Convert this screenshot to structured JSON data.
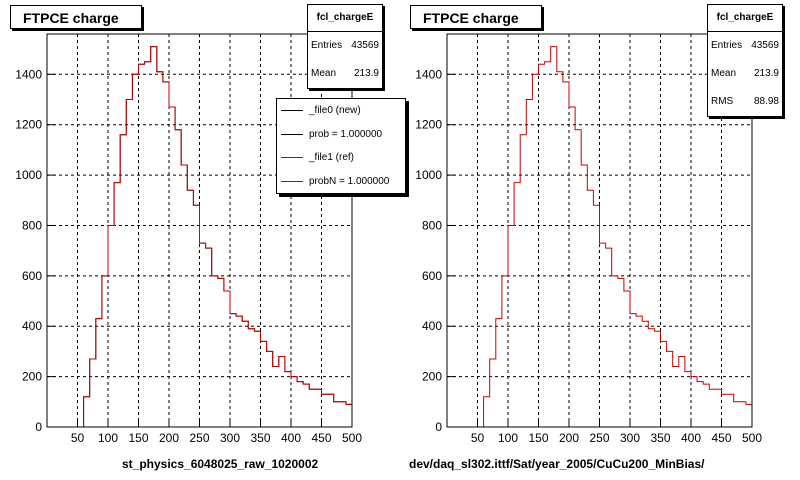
{
  "colors": {
    "new": "#000000",
    "ref": "#cc0000"
  },
  "panels": [
    {
      "title": "FTPCE charge",
      "xtitle": "st_physics_6048025_raw_1020002",
      "stats": {
        "name": "fcl_chargeE",
        "rows": [
          {
            "label": "Entries",
            "value": "43569"
          },
          {
            "label": "Mean",
            "value": "213.9"
          }
        ]
      },
      "legend": [
        {
          "label": "_file0 (new)",
          "color": "#000000"
        },
        {
          "label": "prob = 1.000000",
          "color": "#000000"
        },
        {
          "label": "_file1 (ref)",
          "color": "#cc0000"
        },
        {
          "label": "probN = 1.000000",
          "color": "#cc0000"
        }
      ]
    },
    {
      "title": "FTPCE charge",
      "xtitle": "dev/daq_sl302.ittf/Sat/year_2005/CuCu200_MinBias/",
      "stats": {
        "name": "fcl_chargeE",
        "rows": [
          {
            "label": "Entries",
            "value": "43569"
          },
          {
            "label": "Mean",
            "value": "213.9"
          },
          {
            "label": "RMS",
            "value": "88.98"
          }
        ]
      },
      "legend": []
    }
  ],
  "chart_data": [
    {
      "type": "histogram",
      "title": "FTPCE charge",
      "xlabel": "st_physics_6048025_raw_1020002",
      "ylabel": "",
      "xlim": [
        0,
        500
      ],
      "ylim": [
        0,
        1560
      ],
      "xticks": [
        50,
        100,
        150,
        200,
        250,
        300,
        350,
        400,
        450,
        500
      ],
      "yticks": [
        0,
        200,
        400,
        600,
        800,
        1000,
        1200,
        1400
      ],
      "bin_width": 10,
      "bin_low_edges": [
        0,
        10,
        20,
        30,
        40,
        50,
        60,
        70,
        80,
        90,
        100,
        110,
        120,
        130,
        140,
        150,
        160,
        170,
        180,
        190,
        200,
        210,
        220,
        230,
        240,
        250,
        260,
        270,
        280,
        290,
        300,
        310,
        320,
        330,
        340,
        350,
        360,
        370,
        380,
        390,
        400,
        410,
        420,
        430,
        440,
        450,
        460,
        470,
        480,
        490
      ],
      "series": [
        {
          "name": "_file0 (new)",
          "values": [
            0,
            0,
            0,
            0,
            0,
            0,
            120,
            270,
            430,
            600,
            800,
            970,
            1160,
            1300,
            1400,
            1440,
            1450,
            1510,
            1410,
            1370,
            1270,
            1180,
            1040,
            940,
            880,
            730,
            710,
            600,
            590,
            540,
            450,
            440,
            420,
            390,
            380,
            340,
            300,
            240,
            280,
            220,
            200,
            180,
            170,
            150,
            150,
            130,
            130,
            100,
            100,
            90
          ]
        },
        {
          "name": "_file1 (ref)",
          "values": [
            0,
            0,
            0,
            0,
            0,
            0,
            120,
            270,
            430,
            600,
            800,
            970,
            1160,
            1300,
            1400,
            1440,
            1450,
            1510,
            1410,
            1370,
            1270,
            1180,
            1040,
            940,
            880,
            730,
            710,
            600,
            590,
            540,
            450,
            440,
            420,
            390,
            380,
            340,
            300,
            240,
            280,
            220,
            200,
            180,
            170,
            150,
            150,
            130,
            130,
            100,
            100,
            90
          ]
        }
      ],
      "grid": true,
      "legend_position": "top-right"
    },
    {
      "type": "histogram",
      "title": "FTPCE charge",
      "xlabel": "dev/daq_sl302.ittf/Sat/year_2005/CuCu200_MinBias/",
      "ylabel": "",
      "xlim": [
        0,
        500
      ],
      "ylim": [
        0,
        1560
      ],
      "xticks": [
        50,
        100,
        150,
        200,
        250,
        300,
        350,
        400,
        450,
        500
      ],
      "yticks": [
        0,
        200,
        400,
        600,
        800,
        1000,
        1200,
        1400
      ],
      "bin_width": 10,
      "bin_low_edges": [
        0,
        10,
        20,
        30,
        40,
        50,
        60,
        70,
        80,
        90,
        100,
        110,
        120,
        130,
        140,
        150,
        160,
        170,
        180,
        190,
        200,
        210,
        220,
        230,
        240,
        250,
        260,
        270,
        280,
        290,
        300,
        310,
        320,
        330,
        340,
        350,
        360,
        370,
        380,
        390,
        400,
        410,
        420,
        430,
        440,
        450,
        460,
        470,
        480,
        490
      ],
      "series": [
        {
          "name": "",
          "values": [
            0,
            0,
            0,
            0,
            0,
            0,
            120,
            270,
            430,
            600,
            800,
            970,
            1160,
            1300,
            1400,
            1440,
            1450,
            1510,
            1410,
            1370,
            1270,
            1180,
            1040,
            940,
            880,
            730,
            710,
            600,
            590,
            540,
            450,
            440,
            420,
            390,
            380,
            340,
            300,
            240,
            280,
            220,
            200,
            180,
            170,
            150,
            150,
            130,
            130,
            100,
            100,
            90
          ]
        }
      ],
      "grid": true,
      "legend_position": "none"
    }
  ]
}
